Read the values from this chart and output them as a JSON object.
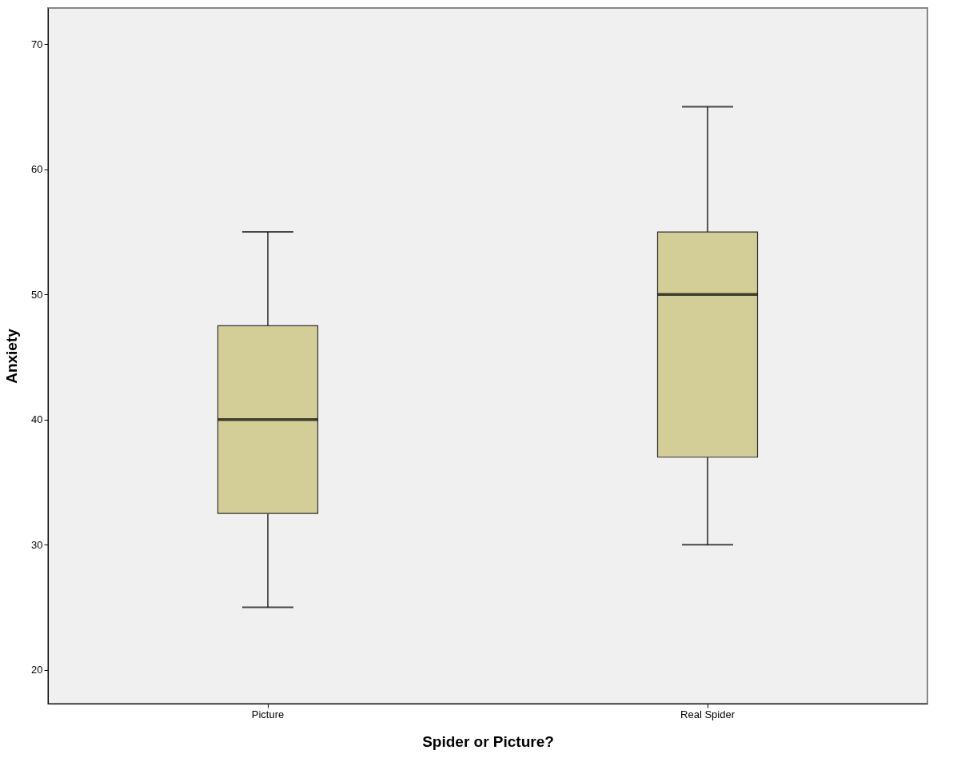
{
  "chart_data": {
    "type": "box",
    "xlabel": "Spider or Picture?",
    "ylabel": "Anxiety",
    "categories": [
      "Picture",
      "Real Spider"
    ],
    "series": [
      {
        "color": "#d3ce97",
        "boxes": [
          {
            "low": 25,
            "q1": 32.5,
            "median": 40,
            "q3": 47.5,
            "high": 55
          },
          {
            "low": 30,
            "q1": 37,
            "median": 50,
            "q3": 55,
            "high": 65
          }
        ]
      }
    ],
    "ylim": [
      17.3,
      72.9
    ],
    "yticks": [
      20,
      30,
      40,
      50,
      60,
      70
    ],
    "grid": false
  }
}
